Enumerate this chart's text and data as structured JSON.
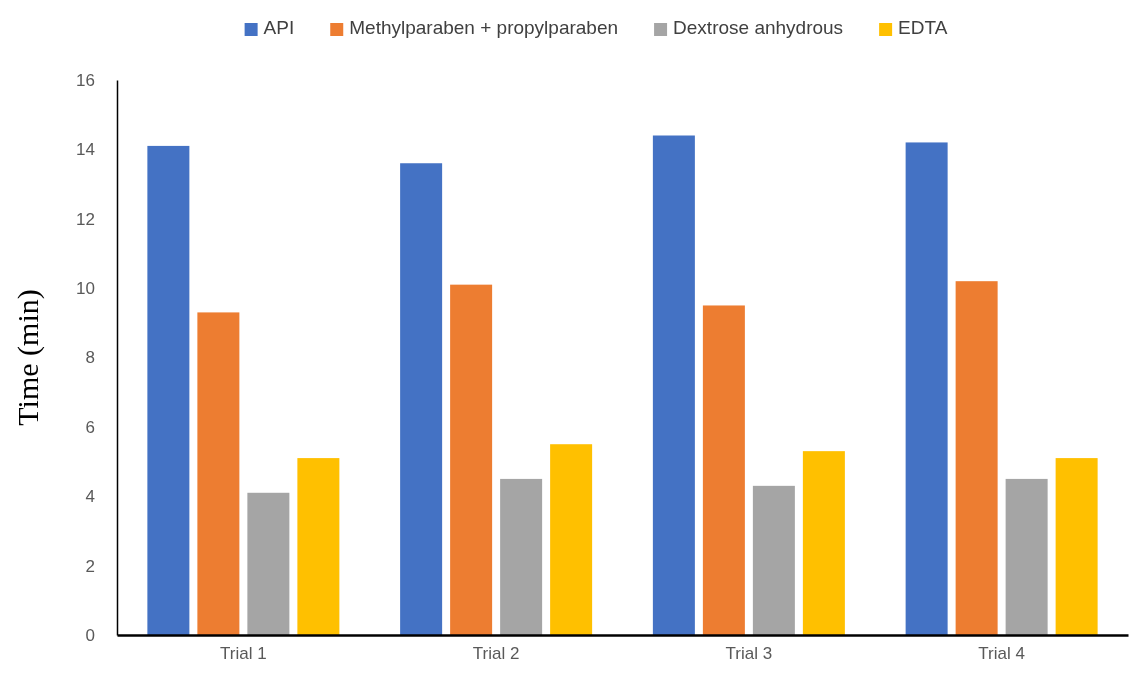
{
  "chart_data": {
    "type": "bar",
    "ylabel": "Time (min)",
    "categories": [
      "Trial 1",
      "Trial 2",
      "Trial 3",
      "Trial 4"
    ],
    "series": [
      {
        "name": "API",
        "color": "#4472c4",
        "values": [
          14.1,
          13.6,
          14.4,
          14.2
        ]
      },
      {
        "name": "Methylparaben + propylparaben",
        "color": "#ed7d31",
        "values": [
          9.3,
          10.1,
          9.5,
          10.2
        ]
      },
      {
        "name": "Dextrose anhydrous",
        "color": "#a5a5a5",
        "values": [
          4.1,
          4.5,
          4.3,
          4.5
        ]
      },
      {
        "name": "EDTA",
        "color": "#ffc000",
        "values": [
          5.1,
          5.5,
          5.3,
          5.1
        ]
      }
    ],
    "ylim": [
      0,
      16
    ],
    "yticks": [
      0,
      2,
      4,
      6,
      8,
      10,
      12,
      14,
      16
    ],
    "grid": false,
    "legend": "top"
  }
}
